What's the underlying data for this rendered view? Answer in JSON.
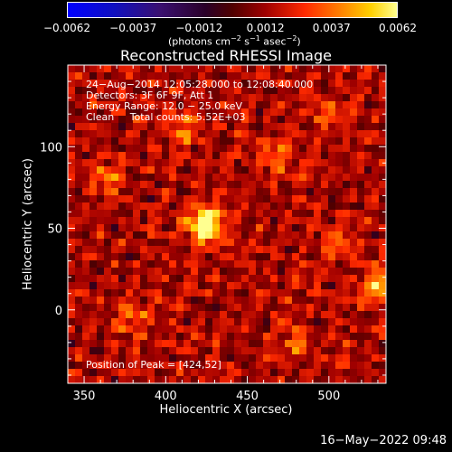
{
  "colorbar": {
    "ticks": [
      "−0.0062",
      "−0.0037",
      "−0.0012",
      "0.0012",
      "0.0037",
      "0.0062"
    ],
    "unit_prefix": "(photons cm",
    "unit_exp1": "−2",
    "unit_mid1": " s",
    "unit_exp2": "−1",
    "unit_mid2": " asec",
    "unit_exp3": "−2",
    "unit_suffix": ")"
  },
  "title": "Reconstructed RHESSI Image",
  "annotations": {
    "line1": "24−Aug−2014 12:05:28.000 to 12:08:40.000",
    "line2": "Detectors: 3F 6F 9F, Att 1",
    "line3": "Energy Range: 12.0 − 25.0 keV",
    "line4": "Clean     Total counts: 5.52E+03",
    "peak": "Position of Peak = [424,52]"
  },
  "timestamp": "16−May−2022 09:48",
  "chart_data": {
    "type": "heatmap",
    "title": "Reconstructed RHESSI Image",
    "xlabel": "Heliocentric X (arcsec)",
    "ylabel": "Heliocentric Y (arcsec)",
    "xlim": [
      340,
      535
    ],
    "ylim": [
      -45,
      150
    ],
    "xticks": [
      350,
      400,
      450,
      500
    ],
    "yticks": [
      0,
      50,
      100
    ],
    "colorbar_range": [
      -0.0062,
      0.0062
    ],
    "colormap": "blue-black-red-yellow-white",
    "peak": {
      "x": 424,
      "y": 52,
      "value": 0.0062
    },
    "sources": [
      {
        "x": 424,
        "y": 52,
        "value": 0.0062
      },
      {
        "x": 532,
        "y": 15,
        "value": 0.0045
      },
      {
        "x": 410,
        "y": 110,
        "value": 0.0025
      },
      {
        "x": 365,
        "y": 80,
        "value": 0.002
      },
      {
        "x": 470,
        "y": 95,
        "value": 0.002
      },
      {
        "x": 505,
        "y": 40,
        "value": 0.0022
      },
      {
        "x": 480,
        "y": -20,
        "value": 0.0018
      },
      {
        "x": 380,
        "y": -5,
        "value": 0.002
      },
      {
        "x": 500,
        "y": 120,
        "value": 0.0015
      }
    ]
  }
}
